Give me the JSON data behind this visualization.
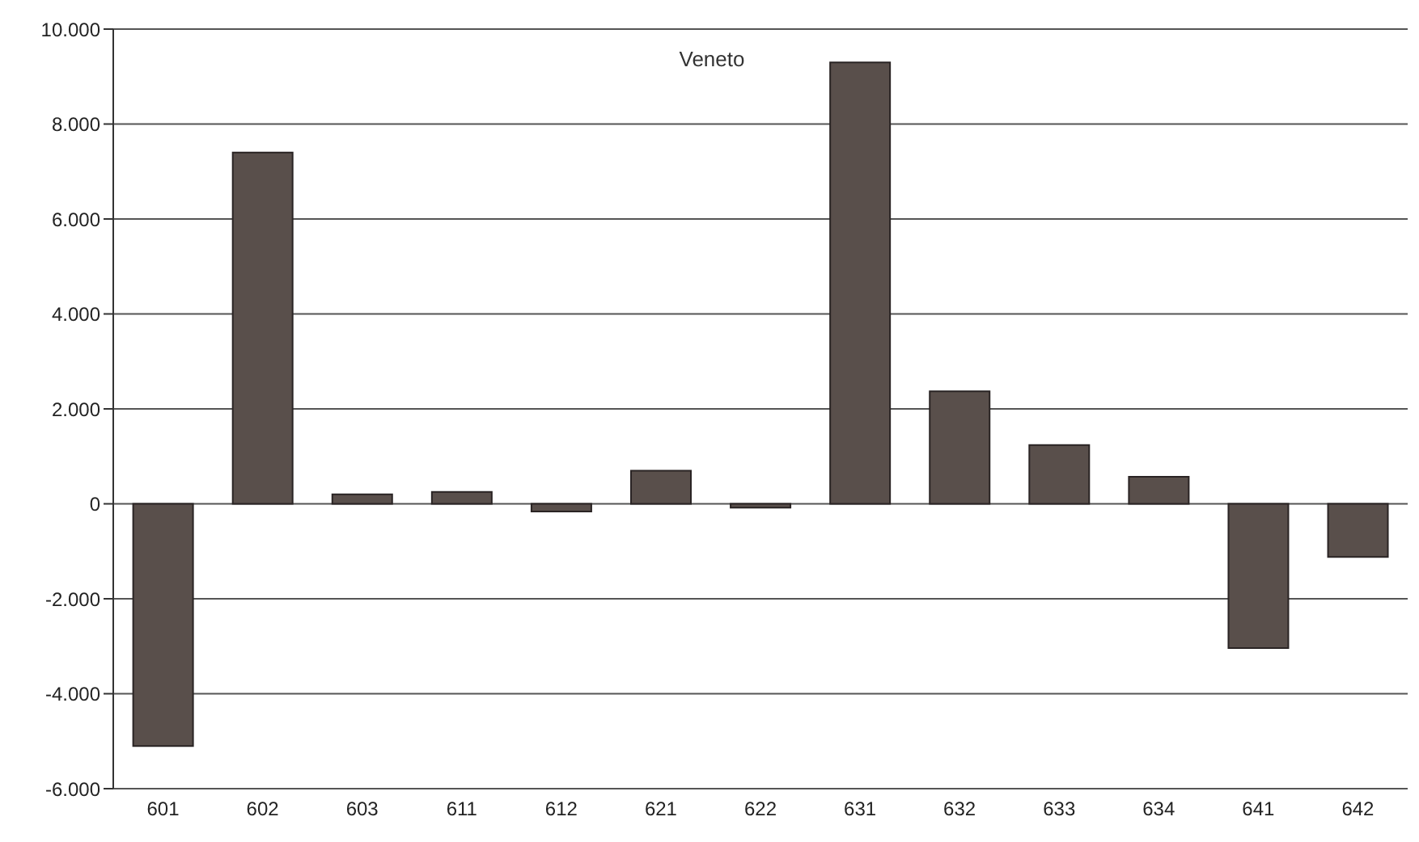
{
  "chart_data": {
    "type": "bar",
    "title": "Veneto",
    "categories": [
      "601",
      "602",
      "603",
      "611",
      "612",
      "621",
      "622",
      "631",
      "632",
      "633",
      "634",
      "641",
      "642"
    ],
    "values": [
      -5100,
      7400,
      200,
      250,
      -160,
      700,
      -80,
      9300,
      2370,
      1240,
      570,
      -3040,
      -1120
    ],
    "color": "#594f4b",
    "ylim": [
      -6000,
      10000
    ],
    "yticks": [
      {
        "value": -6000,
        "label": "-6.000"
      },
      {
        "value": -4000,
        "label": "-4.000"
      },
      {
        "value": -2000,
        "label": "-2.000"
      },
      0,
      {
        "value": 2000,
        "label": "2.000"
      },
      {
        "value": 4000,
        "label": "4.000"
      },
      {
        "value": 6000,
        "label": "6.000"
      },
      {
        "value": 8000,
        "label": "8.000"
      },
      {
        "value": 10000,
        "label": "10.000"
      }
    ],
    "grid": "y"
  }
}
